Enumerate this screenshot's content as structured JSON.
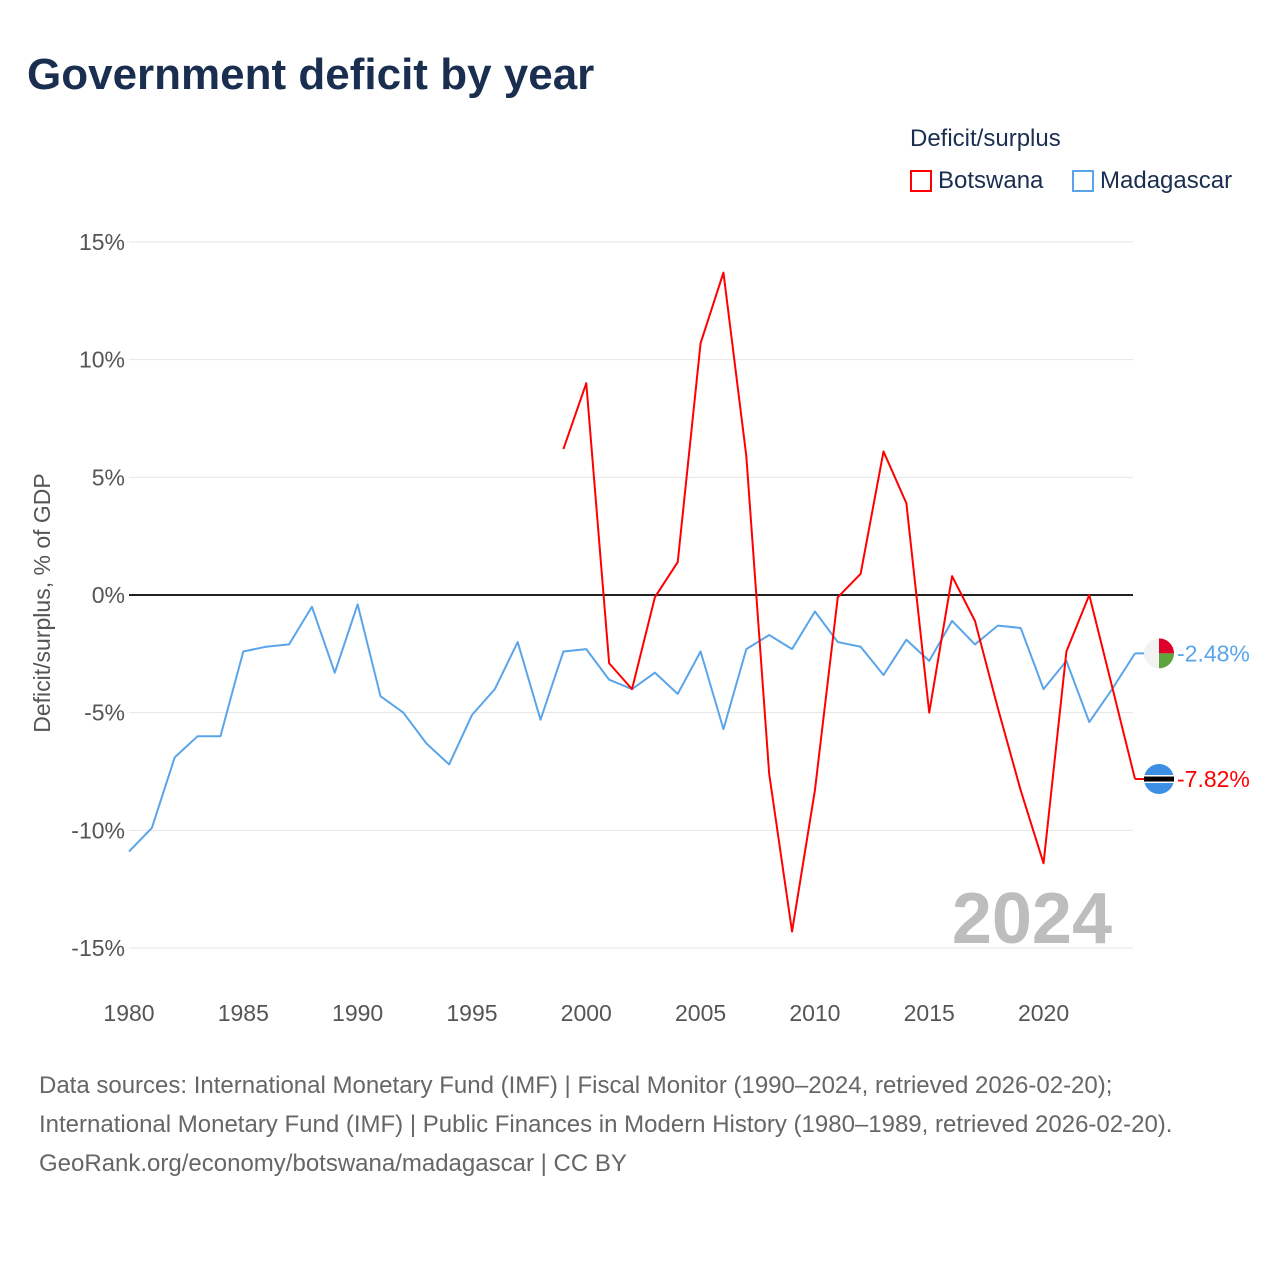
{
  "title": "Government deficit by year",
  "legend": {
    "title": "Deficit/surplus",
    "items": [
      {
        "name": "Botswana",
        "color": "#ff0000"
      },
      {
        "name": "Madagascar",
        "color": "#5aa5ea"
      }
    ]
  },
  "year_label": "2024",
  "footer": {
    "sources": "Data sources: International Monetary Fund (IMF) | Fiscal Monitor (1990–2024, retrieved 2026-02-20); International Monetary Fund (IMF) | Public Finances in Modern History (1980–1989, retrieved 2026-02-20).",
    "credit": "GeoRank.org/economy/botswana/madagascar | CC BY"
  },
  "chart_data": {
    "type": "line",
    "title": "Government deficit by year",
    "ylabel": "Deficit/surplus, % of GDP",
    "xlabel": "",
    "xlim": [
      1980,
      2024
    ],
    "ylim": [
      -15,
      15
    ],
    "xticks": [
      1980,
      1985,
      1990,
      1995,
      2000,
      2005,
      2010,
      2015,
      2020
    ],
    "yticks": [
      15,
      10,
      5,
      0,
      -5,
      -10,
      -15
    ],
    "ytick_labels": [
      "15%",
      "10%",
      "5%",
      "0%",
      "-5%",
      "-10%",
      "-15%"
    ],
    "grid": true,
    "legend_position": "top-right",
    "series": [
      {
        "name": "Botswana",
        "color": "#ff0000",
        "end_label": "-7.82%",
        "x": [
          1999,
          2000,
          2001,
          2002,
          2003,
          2004,
          2005,
          2006,
          2007,
          2008,
          2009,
          2010,
          2011,
          2012,
          2013,
          2014,
          2015,
          2016,
          2017,
          2018,
          2019,
          2020,
          2021,
          2022,
          2023,
          2024
        ],
        "values": [
          6.2,
          9.0,
          -2.9,
          -4.0,
          -0.1,
          1.4,
          10.7,
          13.7,
          5.9,
          -7.6,
          -14.3,
          -8.3,
          -0.1,
          0.9,
          6.1,
          3.9,
          -5.0,
          0.8,
          -1.1,
          -4.8,
          -8.3,
          -11.4,
          -2.4,
          0.0,
          -3.9,
          -7.82
        ]
      },
      {
        "name": "Madagascar",
        "color": "#5aa5ea",
        "end_label": "-2.48%",
        "x": [
          1980,
          1981,
          1982,
          1983,
          1984,
          1985,
          1986,
          1987,
          1988,
          1989,
          1990,
          1991,
          1992,
          1993,
          1994,
          1995,
          1996,
          1997,
          1998,
          1999,
          2000,
          2001,
          2002,
          2003,
          2004,
          2005,
          2006,
          2007,
          2008,
          2009,
          2010,
          2011,
          2012,
          2013,
          2014,
          2015,
          2016,
          2017,
          2018,
          2019,
          2020,
          2021,
          2022,
          2023,
          2024
        ],
        "values": [
          -10.9,
          -9.9,
          -6.9,
          -6.0,
          -6.0,
          -2.4,
          -2.2,
          -2.1,
          -0.5,
          -3.3,
          -0.4,
          -4.3,
          -5.0,
          -6.3,
          -7.2,
          -5.1,
          -4.0,
          -2.0,
          -5.3,
          -2.4,
          -2.3,
          -3.6,
          -4.0,
          -3.3,
          -4.2,
          -2.4,
          -5.7,
          -2.3,
          -1.7,
          -2.3,
          -0.7,
          -2.0,
          -2.2,
          -3.4,
          -1.9,
          -2.8,
          -1.1,
          -2.1,
          -1.3,
          -1.4,
          -4.0,
          -2.8,
          -5.4,
          -4.0,
          -2.48
        ]
      }
    ]
  }
}
